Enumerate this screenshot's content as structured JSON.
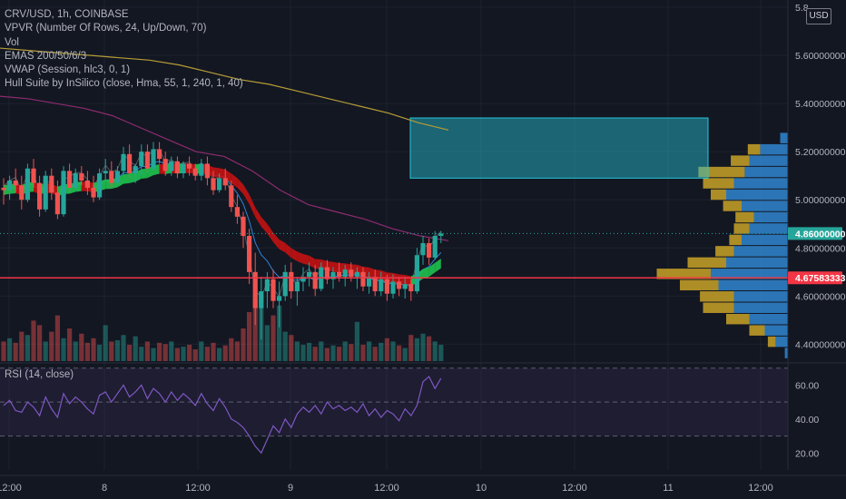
{
  "legend": {
    "symbol": "CRV/USD, 1h, COINBASE",
    "vpvr": "VPVR (Number Of Rows, 24, Up/Down, 70)",
    "vol": "Vol",
    "emas": "EMAS 200/50/6/3",
    "vwap": "VWAP (Session, hlc3, 0, 1)",
    "hull": "Hull Suite by InSilico (close, Hma, 55, 1, 240, 1, 40)",
    "rsi": "RSI (14, close)"
  },
  "currency_button": "USD",
  "colors": {
    "background": "#131722",
    "up": "#26a69a",
    "down": "#ef5350",
    "hull_down": "#c41212",
    "hull_up": "#1fc24f",
    "ema200": "#b69d35",
    "ema50": "#8e2b70",
    "ema6": "#2f83d6",
    "vwap": "#7d8a8a",
    "zone": "#26c6da",
    "support": "#f23645",
    "rsi": "#7e57c2",
    "vp_up": "#2f80c6",
    "vp_down": "#c9a227"
  },
  "chart_data": {
    "type": "candlestick",
    "x_tick_labels": [
      "12:00",
      "8",
      "12:00",
      "9",
      "12:00",
      "10",
      "12:00",
      "11",
      "12:00"
    ],
    "y_axis": {
      "ticks": [
        "5.8",
        "5.60000000",
        "5.40000000",
        "5.20000000",
        "5.00000000",
        "4.80000000",
        "4.60000000",
        "4.40000000"
      ],
      "ylim": [
        4.33,
        5.83
      ]
    },
    "price_label": "4.86000000",
    "support_label": "4.67583333",
    "rsi_ticks": [
      "60.00",
      "40.00",
      "20.00"
    ],
    "ohlc": [
      [
        5.05,
        5.09,
        4.98,
        5.04
      ],
      [
        5.04,
        5.1,
        5.0,
        5.08
      ],
      [
        5.08,
        5.13,
        5.03,
        5.06
      ],
      [
        5.06,
        5.1,
        4.96,
        5.0
      ],
      [
        5.0,
        5.15,
        4.99,
        5.13
      ],
      [
        5.13,
        5.17,
        5.05,
        5.07
      ],
      [
        5.07,
        5.1,
        4.93,
        4.96
      ],
      [
        4.96,
        5.12,
        4.95,
        5.1
      ],
      [
        5.1,
        5.13,
        5.0,
        5.03
      ],
      [
        5.03,
        5.08,
        4.92,
        4.94
      ],
      [
        4.94,
        5.14,
        4.93,
        5.12
      ],
      [
        5.12,
        5.15,
        5.03,
        5.05
      ],
      [
        5.05,
        5.13,
        5.04,
        5.11
      ],
      [
        5.11,
        5.14,
        5.06,
        5.08
      ],
      [
        5.08,
        5.12,
        5.02,
        5.05
      ],
      [
        5.05,
        5.1,
        4.99,
        5.01
      ],
      [
        5.01,
        5.13,
        5.0,
        5.11
      ],
      [
        5.11,
        5.17,
        5.08,
        5.12
      ],
      [
        5.12,
        5.16,
        5.05,
        5.07
      ],
      [
        5.07,
        5.14,
        5.06,
        5.12
      ],
      [
        5.12,
        5.22,
        5.1,
        5.19
      ],
      [
        5.19,
        5.23,
        5.09,
        5.11
      ],
      [
        5.11,
        5.15,
        5.07,
        5.14
      ],
      [
        5.14,
        5.23,
        5.1,
        5.2
      ],
      [
        5.2,
        5.23,
        5.11,
        5.13
      ],
      [
        5.13,
        5.24,
        5.12,
        5.21
      ],
      [
        5.21,
        5.24,
        5.15,
        5.17
      ],
      [
        5.17,
        5.2,
        5.1,
        5.12
      ],
      [
        5.12,
        5.18,
        5.1,
        5.16
      ],
      [
        5.16,
        5.18,
        5.09,
        5.11
      ],
      [
        5.11,
        5.16,
        5.09,
        5.15
      ],
      [
        5.15,
        5.18,
        5.1,
        5.13
      ],
      [
        5.13,
        5.15,
        5.08,
        5.1
      ],
      [
        5.1,
        5.17,
        5.08,
        5.15
      ],
      [
        5.15,
        5.18,
        5.06,
        5.09
      ],
      [
        5.09,
        5.12,
        5.02,
        5.04
      ],
      [
        5.04,
        5.11,
        5.03,
        5.09
      ],
      [
        5.09,
        5.13,
        5.04,
        5.06
      ],
      [
        5.06,
        5.08,
        4.95,
        4.97
      ],
      [
        4.97,
        5.02,
        4.9,
        4.93
      ],
      [
        4.93,
        4.95,
        4.8,
        4.85
      ],
      [
        4.85,
        4.88,
        4.65,
        4.7
      ],
      [
        4.7,
        4.78,
        4.48,
        4.55
      ],
      [
        4.55,
        4.68,
        4.42,
        4.62
      ],
      [
        4.62,
        4.7,
        4.55,
        4.67
      ],
      [
        4.67,
        4.71,
        4.55,
        4.58
      ],
      [
        4.58,
        4.66,
        4.47,
        4.6
      ],
      [
        4.6,
        4.73,
        4.58,
        4.7
      ],
      [
        4.7,
        4.74,
        4.59,
        4.62
      ],
      [
        4.62,
        4.68,
        4.56,
        4.66
      ],
      [
        4.66,
        4.72,
        4.62,
        4.68
      ],
      [
        4.68,
        4.74,
        4.64,
        4.7
      ],
      [
        4.7,
        4.73,
        4.6,
        4.63
      ],
      [
        4.63,
        4.74,
        4.62,
        4.72
      ],
      [
        4.72,
        4.75,
        4.65,
        4.67
      ],
      [
        4.67,
        4.72,
        4.63,
        4.7
      ],
      [
        4.7,
        4.74,
        4.66,
        4.68
      ],
      [
        4.68,
        4.73,
        4.64,
        4.71
      ],
      [
        4.71,
        4.74,
        4.66,
        4.68
      ],
      [
        4.68,
        4.72,
        4.63,
        4.7
      ],
      [
        4.7,
        4.72,
        4.62,
        4.64
      ],
      [
        4.64,
        4.7,
        4.61,
        4.68
      ],
      [
        4.68,
        4.71,
        4.6,
        4.62
      ],
      [
        4.62,
        4.7,
        4.6,
        4.67
      ],
      [
        4.67,
        4.69,
        4.58,
        4.61
      ],
      [
        4.61,
        4.69,
        4.59,
        4.66
      ],
      [
        4.66,
        4.68,
        4.6,
        4.63
      ],
      [
        4.63,
        4.68,
        4.59,
        4.65
      ],
      [
        4.65,
        4.67,
        4.58,
        4.62
      ],
      [
        4.62,
        4.8,
        4.61,
        4.77
      ],
      [
        4.77,
        4.85,
        4.73,
        4.82
      ],
      [
        4.82,
        4.84,
        4.73,
        4.76
      ],
      [
        4.76,
        4.87,
        4.75,
        4.85
      ],
      [
        4.85,
        4.87,
        4.82,
        4.86
      ]
    ],
    "volume": [
      0.3,
      0.35,
      0.28,
      0.45,
      0.4,
      0.62,
      0.55,
      0.3,
      0.45,
      0.7,
      0.35,
      0.5,
      0.3,
      0.42,
      0.28,
      0.35,
      0.25,
      0.55,
      0.3,
      0.32,
      0.4,
      0.25,
      0.38,
      0.22,
      0.3,
      0.2,
      0.28,
      0.26,
      0.3,
      0.2,
      0.22,
      0.25,
      0.18,
      0.3,
      0.22,
      0.28,
      0.2,
      0.24,
      0.35,
      0.3,
      0.5,
      0.75,
      0.95,
      1.0,
      0.55,
      0.7,
      0.85,
      0.45,
      0.4,
      0.3,
      0.25,
      0.28,
      0.22,
      0.3,
      0.2,
      0.24,
      0.22,
      0.3,
      0.26,
      0.6,
      0.25,
      0.3,
      0.22,
      0.28,
      0.35,
      0.3,
      0.24,
      0.2,
      0.4,
      0.35,
      0.42,
      0.38,
      0.3,
      0.25
    ],
    "ema200": [
      5.63,
      5.62,
      5.61,
      5.6,
      5.59,
      5.58,
      5.56,
      5.53,
      5.5,
      5.48,
      5.45,
      5.42,
      5.39,
      5.36,
      5.32,
      5.29
    ],
    "ema50": [
      5.43,
      5.42,
      5.4,
      5.38,
      5.35,
      5.3,
      5.25,
      5.2,
      5.18,
      5.12,
      5.04,
      4.98,
      4.95,
      4.92,
      4.88,
      4.85,
      4.83
    ],
    "rsi": [
      48,
      51,
      45,
      44,
      50,
      47,
      42,
      53,
      46,
      41,
      55,
      49,
      53,
      50,
      46,
      43,
      54,
      56,
      50,
      55,
      60,
      53,
      56,
      60,
      52,
      58,
      55,
      50,
      56,
      51,
      55,
      52,
      48,
      55,
      49,
      45,
      52,
      47,
      40,
      38,
      35,
      30,
      24,
      20,
      28,
      36,
      32,
      40,
      35,
      43,
      47,
      44,
      48,
      43,
      50,
      46,
      48,
      45,
      47,
      44,
      49,
      42,
      46,
      41,
      45,
      43,
      39,
      46,
      42,
      48,
      62,
      65,
      58,
      64
    ],
    "volume_profile": [
      {
        "up": 0.05,
        "down": 0.0
      },
      {
        "up": 0.18,
        "down": 0.08
      },
      {
        "up": 0.25,
        "down": 0.12
      },
      {
        "up": 0.28,
        "down": 0.3
      },
      {
        "up": 0.35,
        "down": 0.2
      },
      {
        "up": 0.4,
        "down": 0.1
      },
      {
        "up": 0.3,
        "down": 0.12
      },
      {
        "up": 0.22,
        "down": 0.12
      },
      {
        "up": 0.25,
        "down": 0.1
      },
      {
        "up": 0.3,
        "down": 0.08
      },
      {
        "up": 0.35,
        "down": 0.12
      },
      {
        "up": 0.4,
        "down": 0.25
      },
      {
        "up": 0.5,
        "down": 0.35
      },
      {
        "up": 0.45,
        "down": 0.25
      },
      {
        "up": 0.35,
        "down": 0.22
      },
      {
        "up": 0.35,
        "down": 0.2
      },
      {
        "up": 0.25,
        "down": 0.15
      },
      {
        "up": 0.15,
        "down": 0.1
      },
      {
        "up": 0.08,
        "down": 0.05
      },
      {
        "up": 0.02,
        "down": 0.0
      }
    ],
    "zone": {
      "from": 5.09,
      "to": 5.34
    },
    "support": 4.6758
  }
}
